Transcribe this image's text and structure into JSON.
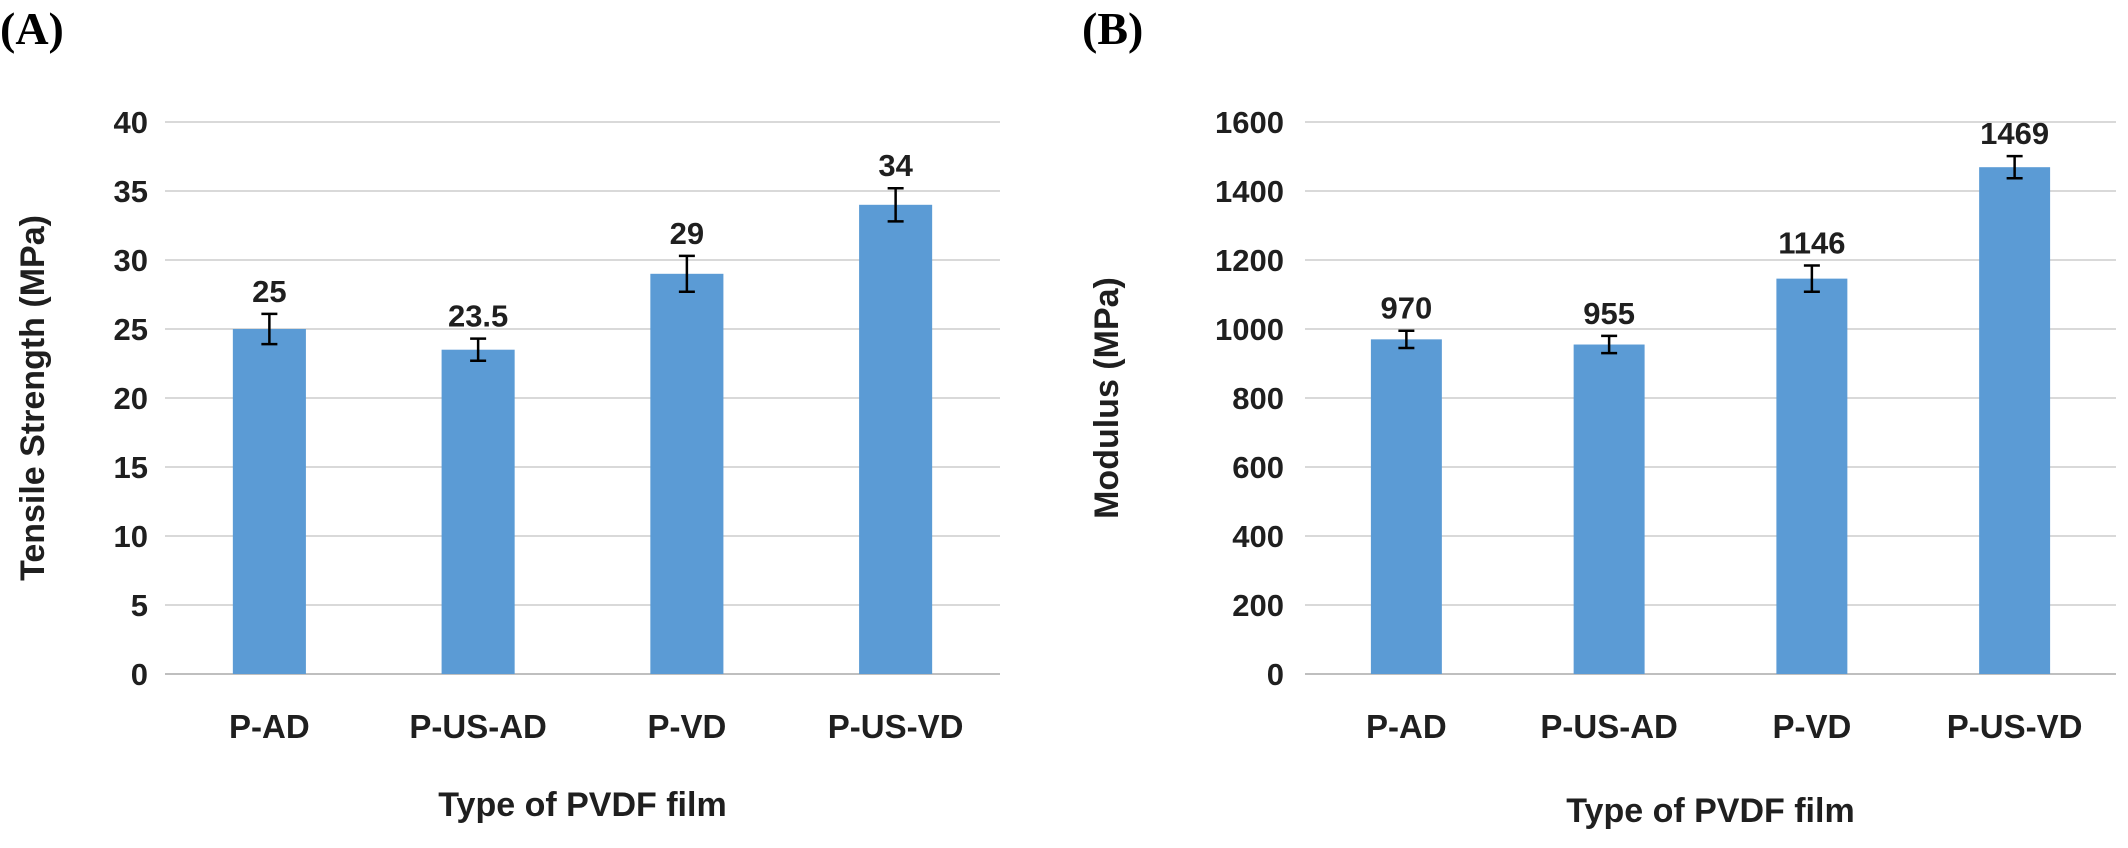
{
  "chart_data": [
    {
      "type": "bar",
      "panel_label": "(A)",
      "categories": [
        "P-AD",
        "P-US-AD",
        "P-VD",
        "P-US-VD"
      ],
      "values": [
        25,
        23.5,
        29,
        34
      ],
      "data_labels": [
        "25",
        "23.5",
        "29",
        "34"
      ],
      "error_bars": [
        1.1,
        0.8,
        1.3,
        1.2
      ],
      "xlabel": "Type of PVDF film",
      "ylabel": "Tensile Strength (MPa)",
      "ylim": [
        0,
        40
      ],
      "yticks": [
        0,
        5,
        10,
        15,
        20,
        25,
        30,
        35,
        40
      ],
      "grid": true,
      "bar_color": "#5b9bd5"
    },
    {
      "type": "bar",
      "panel_label": "(B)",
      "categories": [
        "P-AD",
        "P-US-AD",
        "P-VD",
        "P-US-VD"
      ],
      "values": [
        970,
        955,
        1146,
        1469
      ],
      "data_labels": [
        "970",
        "955",
        "1146",
        "1469"
      ],
      "error_bars": [
        25,
        25,
        38,
        32
      ],
      "xlabel": "Type of PVDF film",
      "ylabel": "Modulus (MPa)",
      "ylim": [
        0,
        1600
      ],
      "yticks": [
        0,
        200,
        400,
        600,
        800,
        1000,
        1200,
        1400,
        1600
      ],
      "grid": true,
      "bar_color": "#5b9bd5"
    }
  ]
}
